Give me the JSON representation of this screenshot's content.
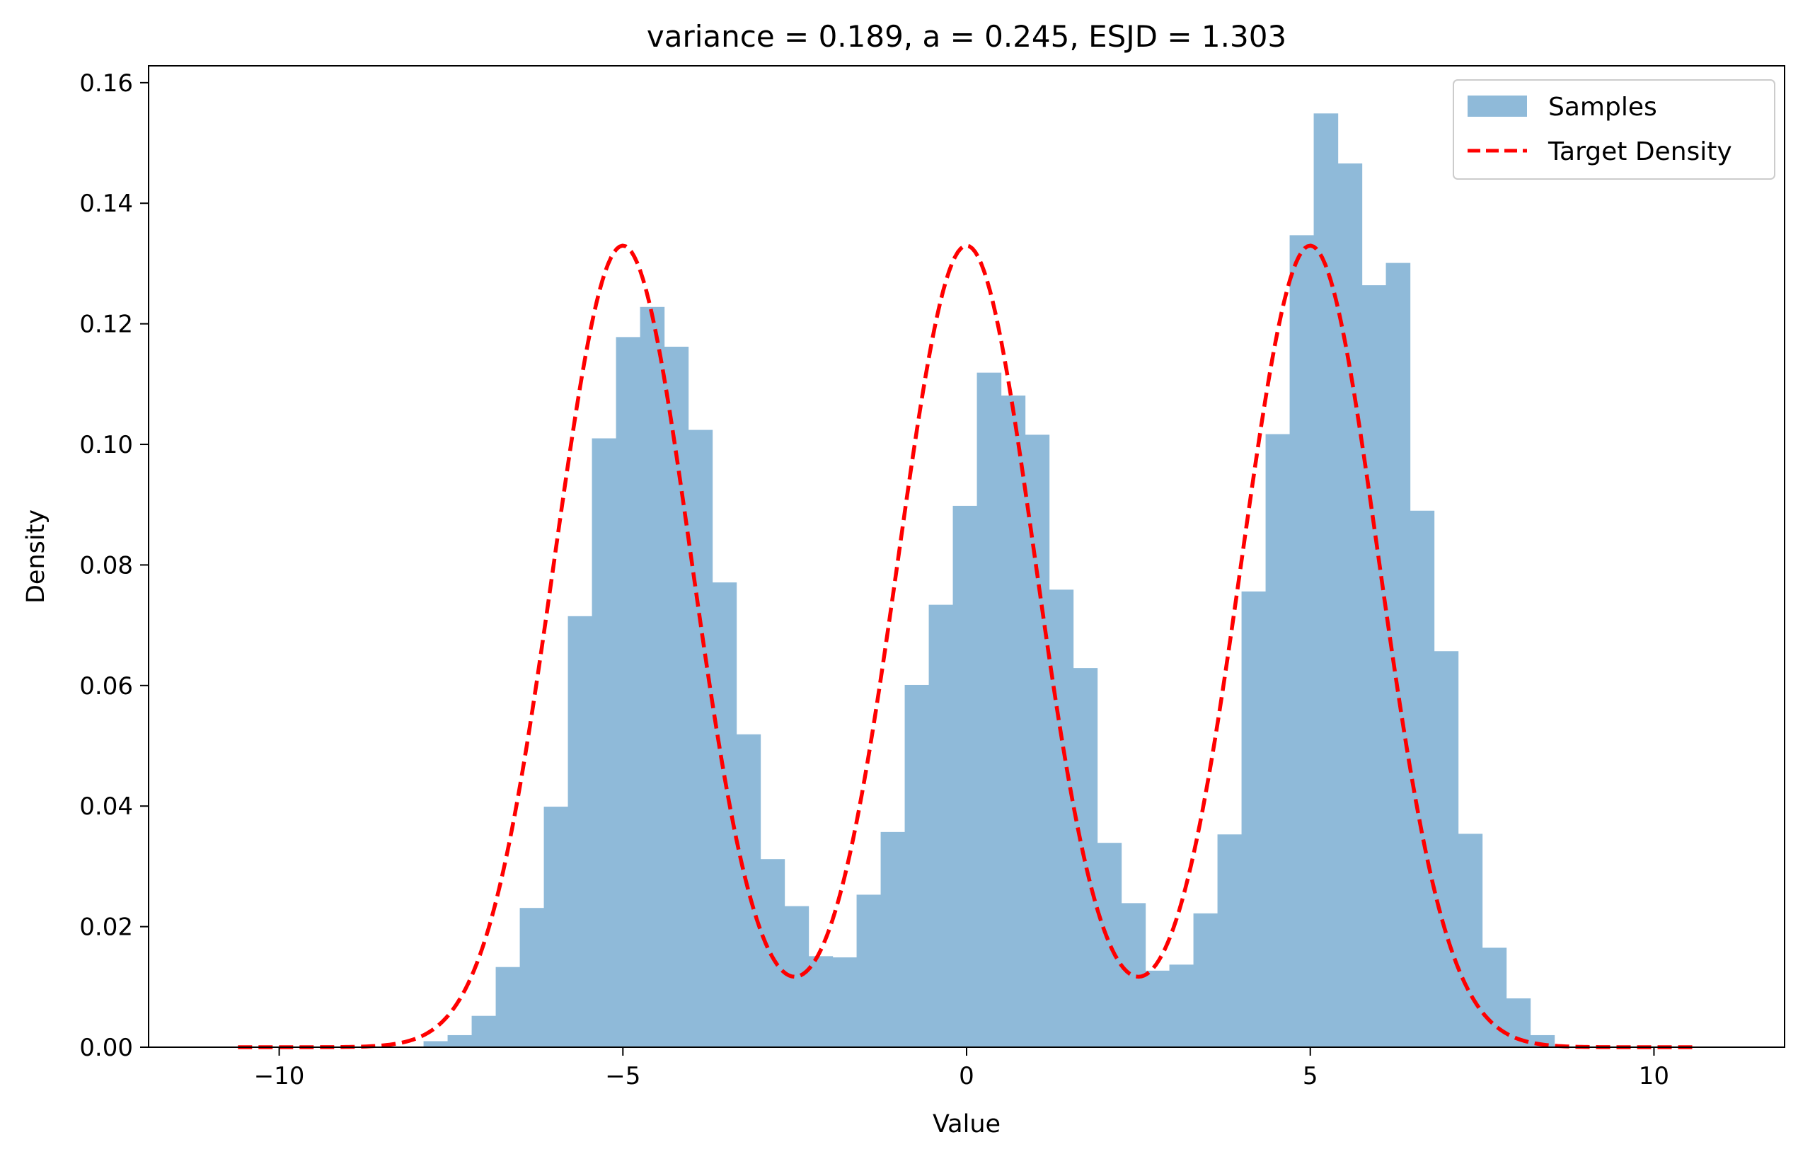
{
  "chart_data": {
    "type": "bar",
    "title": "variance = 0.189, a = 0.245, ESJD = 1.303",
    "xlabel": "Value",
    "ylabel": "Density",
    "xlim": [
      -11.9,
      11.9
    ],
    "ylim": [
      0,
      0.1628
    ],
    "grid": false,
    "legend_position": "top-right",
    "x_ticks": [
      -10,
      -5,
      0,
      5,
      10
    ],
    "x_tick_labels": [
      "−10",
      "−5",
      "0",
      "5",
      "10"
    ],
    "y_ticks": [
      0.0,
      0.02,
      0.04,
      0.06,
      0.08,
      0.1,
      0.12,
      0.14,
      0.16
    ],
    "y_tick_labels": [
      "0.00",
      "0.02",
      "0.04",
      "0.06",
      "0.08",
      "0.10",
      "0.12",
      "0.14",
      "0.16"
    ],
    "series": [
      {
        "name": "Samples",
        "kind": "histogram",
        "color": "#8fbad9",
        "bin_start": -7.9,
        "bin_width": 0.35,
        "values": [
          0.001,
          0.002,
          0.0052,
          0.0133,
          0.0231,
          0.0399,
          0.0715,
          0.101,
          0.1178,
          0.1228,
          0.1162,
          0.1024,
          0.0771,
          0.0519,
          0.0312,
          0.0234,
          0.0151,
          0.0149,
          0.0253,
          0.0357,
          0.0601,
          0.0734,
          0.0898,
          0.1119,
          0.1081,
          0.1016,
          0.0759,
          0.0629,
          0.0339,
          0.0239,
          0.0127,
          0.0137,
          0.0222,
          0.0353,
          0.0756,
          0.1017,
          0.1347,
          0.1549,
          0.1466,
          0.1264,
          0.1301,
          0.089,
          0.0657,
          0.0354,
          0.0165,
          0.0081,
          0.002
        ]
      },
      {
        "name": "Target Density",
        "kind": "line",
        "color": "#ff0000",
        "dash": "dashed",
        "x_range": [
          -10.6,
          10.6
        ],
        "components": [
          {
            "mean": -5,
            "sd": 1,
            "weight": 0.3333
          },
          {
            "mean": 0,
            "sd": 1,
            "weight": 0.3333
          },
          {
            "mean": 5,
            "sd": 1,
            "weight": 0.3333
          }
        ]
      }
    ]
  }
}
